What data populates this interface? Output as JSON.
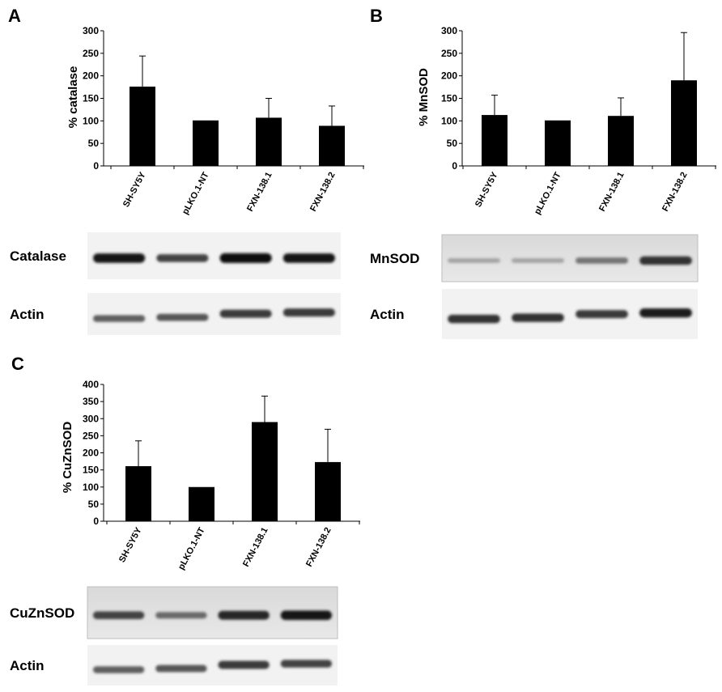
{
  "panels": [
    {
      "letter": "A",
      "chart_data": {
        "type": "bar",
        "categories": [
          "SH-SY5Y",
          "pLKO.1-NT",
          "FXN-138.1",
          "FXN-138.2"
        ],
        "values": [
          176,
          101,
          107,
          89
        ],
        "error": [
          68,
          0,
          43,
          44
        ],
        "title": "",
        "xlabel": "",
        "ylabel": "% catalase",
        "ylim": [
          0,
          300
        ],
        "yticks": [
          0,
          50,
          100,
          150,
          200,
          250,
          300
        ],
        "grid": false
      },
      "blots": [
        {
          "label": "Catalase",
          "bands": [
            0.95,
            0.7,
            1.0,
            0.95
          ]
        },
        {
          "label": "Actin",
          "bands": [
            0.55,
            0.6,
            0.75,
            0.75
          ]
        }
      ]
    },
    {
      "letter": "B",
      "chart_data": {
        "type": "bar",
        "categories": [
          "SH-SY5Y",
          "pLKO.1-NT",
          "FXN-138.1",
          "FXN-138.2"
        ],
        "values": [
          113,
          101,
          111,
          190
        ],
        "error": [
          44,
          0,
          40,
          106
        ],
        "title": "",
        "xlabel": "",
        "ylabel": "% MnSOD",
        "ylim": [
          0,
          300
        ],
        "yticks": [
          0,
          50,
          100,
          150,
          200,
          250,
          300
        ],
        "grid": false
      },
      "blots": [
        {
          "label": "MnSOD",
          "bands": [
            0.2,
            0.2,
            0.45,
            0.8
          ]
        },
        {
          "label": "Actin",
          "bands": [
            0.8,
            0.8,
            0.75,
            0.9
          ]
        }
      ]
    },
    {
      "letter": "C",
      "chart_data": {
        "type": "bar",
        "categories": [
          "SH-SY5Y",
          "pLKO.1-NT",
          "FXN-138.1",
          "FXN-138.2"
        ],
        "values": [
          161,
          100,
          290,
          173
        ],
        "error": [
          74,
          0,
          76,
          96
        ],
        "title": "",
        "xlabel": "",
        "ylabel": "% CuZnSOD",
        "ylim": [
          0,
          400
        ],
        "yticks": [
          0,
          50,
          100,
          150,
          200,
          250,
          300,
          350,
          400
        ],
        "grid": false
      },
      "blots": [
        {
          "label": "CuZnSOD",
          "bands": [
            0.7,
            0.5,
            0.85,
            0.95
          ]
        },
        {
          "label": "Actin",
          "bands": [
            0.55,
            0.6,
            0.75,
            0.7
          ]
        }
      ]
    }
  ]
}
